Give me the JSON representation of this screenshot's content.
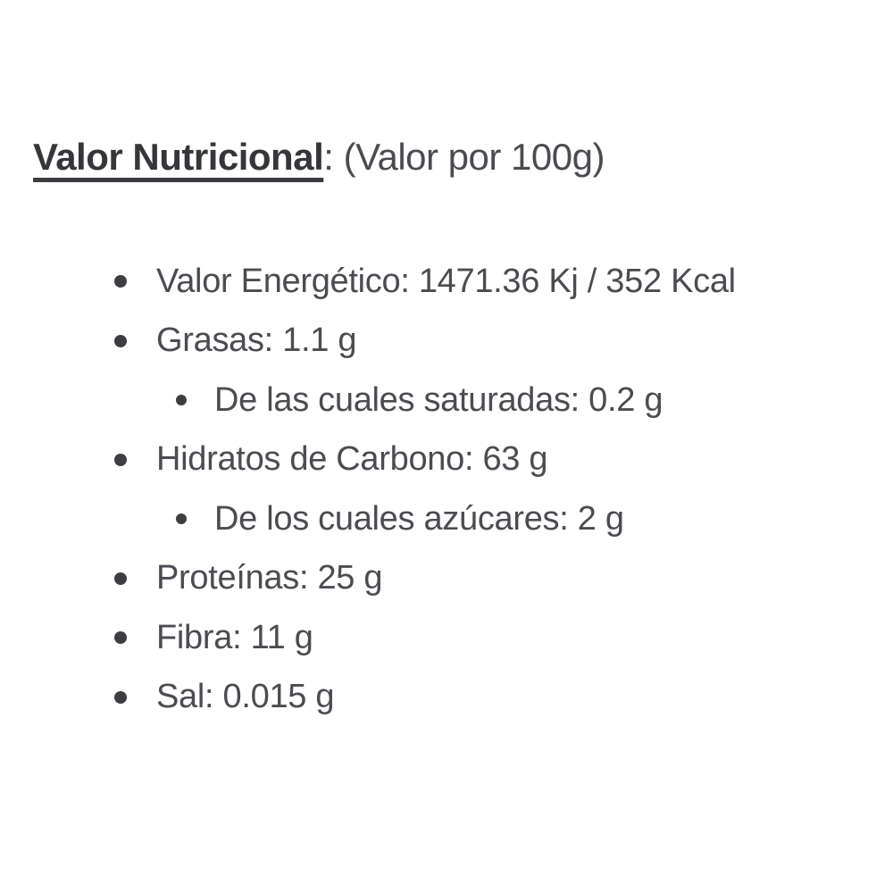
{
  "title": {
    "bold": "Valor Nutricional",
    "rest": ": (Valor por 100g)"
  },
  "nutrition": {
    "items": [
      {
        "text": "Valor Energético: 1471.36 Kj / 352 Kcal",
        "nutrient": "Valor Energético",
        "value": "1471.36 Kj / 352 Kcal",
        "level": 0
      },
      {
        "text": "Grasas: 1.1 g",
        "nutrient": "Grasas",
        "value": "1.1 g",
        "level": 0
      },
      {
        "text": "De las cuales saturadas: 0.2 g",
        "nutrient": "De las cuales saturadas",
        "value": "0.2 g",
        "level": 1
      },
      {
        "text": "Hidratos de Carbono: 63 g",
        "nutrient": "Hidratos de Carbono",
        "value": "63 g",
        "level": 0
      },
      {
        "text": "De los cuales azúcares: 2 g",
        "nutrient": "De los cuales azúcares",
        "value": "2 g",
        "level": 1
      },
      {
        "text": "Proteínas: 25 g",
        "nutrient": "Proteínas",
        "value": "25 g",
        "level": 0
      },
      {
        "text": "Fibra: 11 g",
        "nutrient": "Fibra",
        "value": "11 g",
        "level": 0
      },
      {
        "text": "Sal: 0.015 g",
        "nutrient": "Sal",
        "value": "0.015 g",
        "level": 0
      }
    ]
  },
  "colors": {
    "background": "#ffffff",
    "title_text": "#36363a",
    "body_text": "#4b4b51",
    "bullet": "#3e3e42",
    "underline": "#3b3b3f"
  }
}
